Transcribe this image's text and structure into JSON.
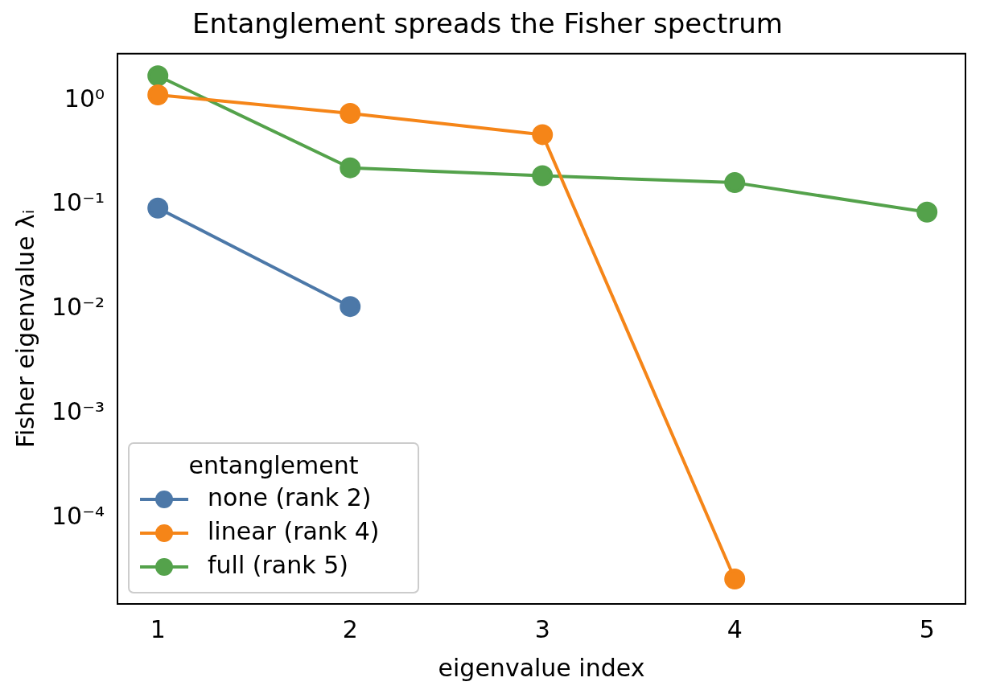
{
  "chart_data": {
    "type": "line",
    "title": "Entanglement spreads the Fisher spectrum",
    "xlabel": "eigenvalue index",
    "ylabel": "Fisher eigenvalue λᵢ",
    "legend_title": "entanglement",
    "series": [
      {
        "name": "none (rank 2)",
        "color": "#4c78a8",
        "x": [
          1,
          2
        ],
        "values": [
          0.093,
          0.0106
        ]
      },
      {
        "name": "linear (rank 4)",
        "color": "#f58518",
        "x": [
          1,
          2,
          3,
          4
        ],
        "values": [
          1.13,
          0.75,
          0.47,
          2.6e-05
        ]
      },
      {
        "name": "full (rank 5)",
        "color": "#54a24b",
        "x": [
          1,
          2,
          3,
          4,
          5
        ],
        "values": [
          1.72,
          0.226,
          0.19,
          0.163,
          0.085
        ]
      }
    ],
    "xlim": [
      0.79,
      5.2
    ],
    "xticks": [
      1,
      2,
      3,
      4,
      5
    ],
    "ylim": [
      1.5e-05,
      2.8
    ],
    "yticks": [
      {
        "value": 1,
        "label": "10⁰"
      },
      {
        "value": 0.1,
        "label": "10⁻¹"
      },
      {
        "value": 0.01,
        "label": "10⁻²"
      },
      {
        "value": 0.001,
        "label": "10⁻³"
      },
      {
        "value": 0.0001,
        "label": "10⁻⁴"
      }
    ],
    "log": "y",
    "grid": false,
    "legend": "bottom left",
    "marker": "circle",
    "line_style": "solid"
  }
}
